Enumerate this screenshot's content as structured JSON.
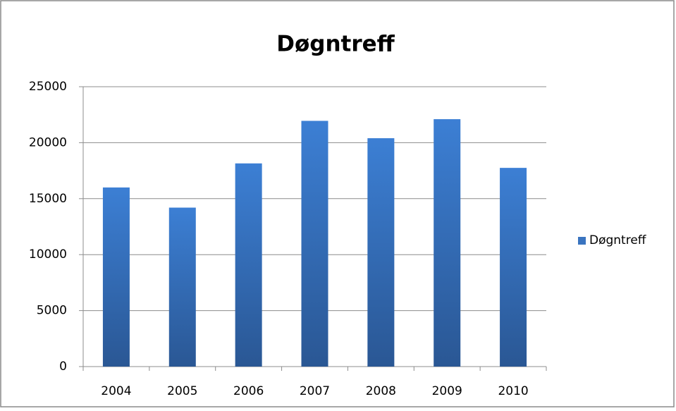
{
  "chart_data": {
    "type": "bar",
    "title": "Døgntreff",
    "categories": [
      "2004",
      "2005",
      "2006",
      "2007",
      "2008",
      "2009",
      "2010"
    ],
    "series": [
      {
        "name": "Døgntreff",
        "color": "#3a74c0",
        "values": [
          16000,
          14200,
          18150,
          21950,
          20400,
          22100,
          17750
        ]
      }
    ],
    "ylim": [
      0,
      25000
    ],
    "yticks": [
      0,
      5000,
      10000,
      15000,
      20000,
      25000
    ],
    "grid": true,
    "legend": "right"
  }
}
